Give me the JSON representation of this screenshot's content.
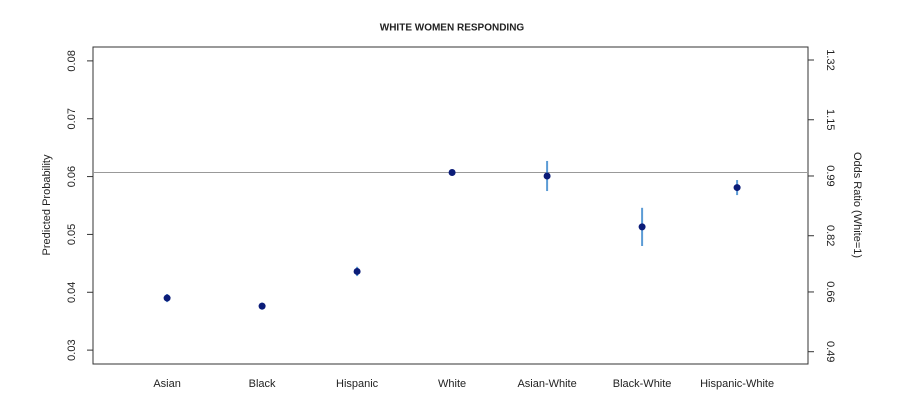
{
  "chart_data": {
    "type": "dot-errorbar",
    "title": "WHITE WOMEN RESPONDING",
    "ylabel": "Predicted Probability",
    "y2label": "Odds Ratio (White=1)",
    "categories": [
      "Asian",
      "Black",
      "Hispanic",
      "White",
      "Asian-White",
      "Black-White",
      "Hispanic-White"
    ],
    "series": [
      {
        "color": "#0b1c78",
        "error_color": "#5b9bd5",
        "values": [
          0.039,
          0.0376,
          0.0436,
          0.0607,
          0.0601,
          0.0513,
          0.0581
        ],
        "errors": [
          0.0007,
          0.0006,
          0.0008,
          0.0003,
          0.0026,
          0.0033,
          0.0013
        ]
      }
    ],
    "reference_line": 0.0607,
    "ylim": [
      0.0276,
      0.0824
    ],
    "yticks": [
      0.03,
      0.04,
      0.05,
      0.06,
      0.07,
      0.08
    ],
    "y2lim": [
      0.455,
      1.357
    ],
    "y2ticks": [
      0.49,
      0.66,
      0.82,
      0.99,
      1.15,
      1.32
    ],
    "grid": false
  }
}
